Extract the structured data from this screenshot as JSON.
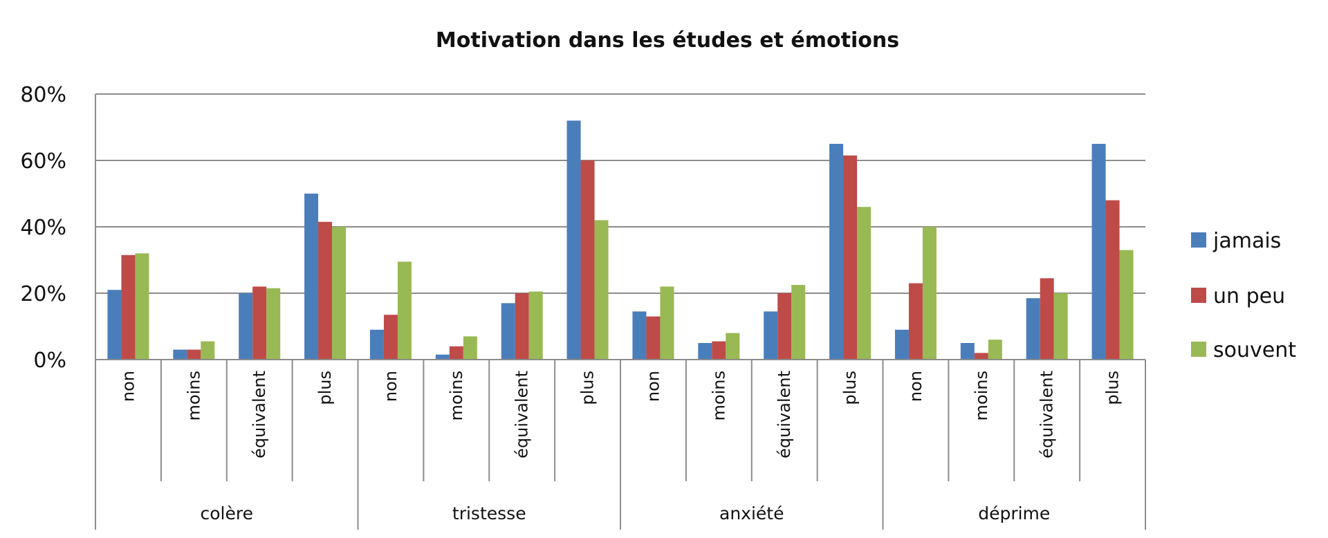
{
  "chart_data": {
    "type": "bar",
    "title": "Motivation dans les études et émotions",
    "xlabel": "",
    "ylabel": "",
    "ylim": [
      0,
      80
    ],
    "yticks": [
      "0%",
      "20%",
      "40%",
      "60%",
      "80%"
    ],
    "grid": true,
    "legend_position": "right",
    "groups": [
      {
        "name": "colère",
        "categories": [
          "non",
          "moins",
          "équivalent",
          "plus"
        ]
      },
      {
        "name": "tristesse",
        "categories": [
          "non",
          "moins",
          "équivalent",
          "plus"
        ]
      },
      {
        "name": "anxiété",
        "categories": [
          "non",
          "moins",
          "équivalent",
          "plus"
        ]
      },
      {
        "name": "déprime",
        "categories": [
          "non",
          "moins",
          "équivalent",
          "plus"
        ]
      }
    ],
    "series": [
      {
        "name": "jamais",
        "color": "#4a7ebb",
        "values": [
          21,
          3,
          20,
          50,
          9,
          1.5,
          17,
          72,
          14.5,
          5,
          14.5,
          65,
          9,
          5,
          18.5,
          65
        ]
      },
      {
        "name": "un peu",
        "color": "#be4b48",
        "values": [
          31.5,
          3,
          22,
          41.5,
          13.5,
          4,
          20,
          60,
          13,
          5.5,
          20,
          61.5,
          23,
          2,
          24.5,
          48
        ]
      },
      {
        "name": "souvent",
        "color": "#98b954",
        "values": [
          32,
          5.5,
          21.5,
          40,
          29.5,
          7,
          20.5,
          42,
          22,
          8,
          22.5,
          46,
          40,
          6,
          20,
          33
        ]
      }
    ]
  }
}
